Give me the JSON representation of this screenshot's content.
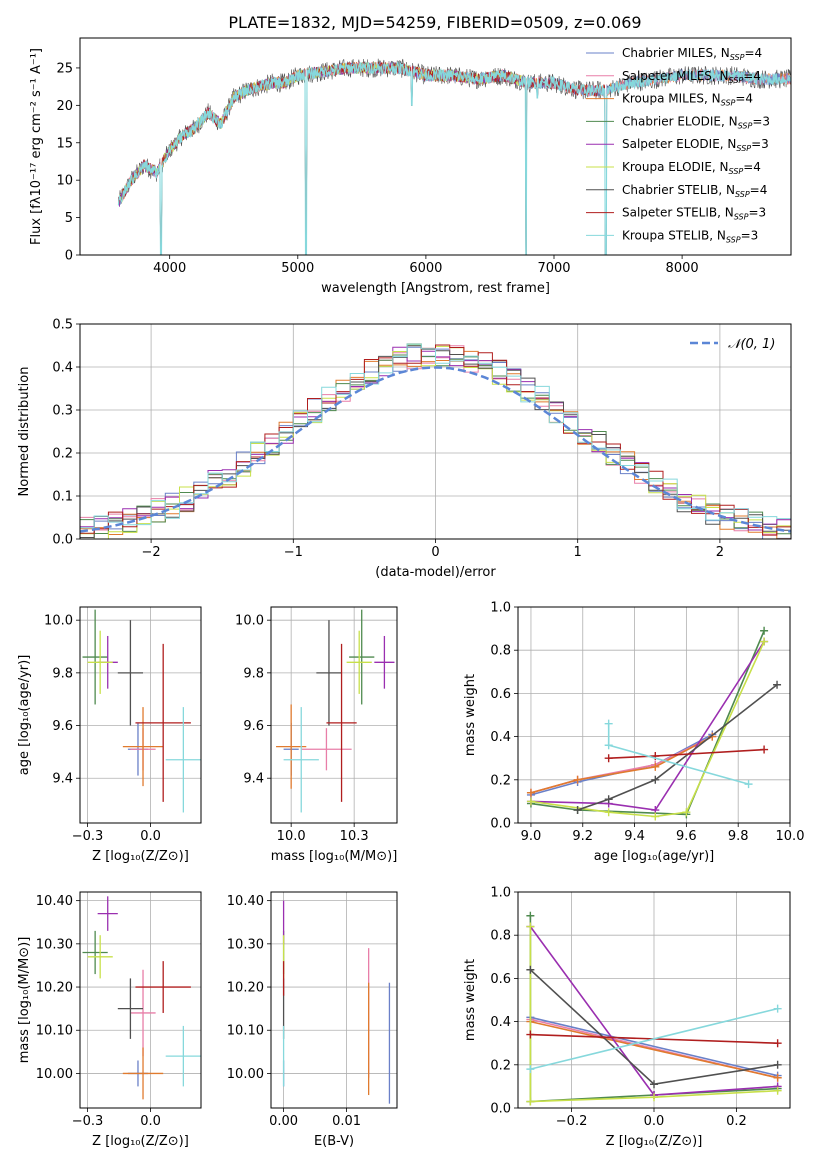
{
  "figure": {
    "title": "PLATE=1832, MJD=54259, FIBERID=0509, z=0.069"
  },
  "palette": {
    "chabrier_miles": "#6a80c8",
    "salpeter_miles": "#e87ea8",
    "kroupa_miles": "#e07b2f",
    "chabrier_elodie": "#4f8a4f",
    "salpeter_elodie": "#9a2fb0",
    "kroupa_elodie": "#c8e04a",
    "chabrier_stelib": "#505050",
    "salpeter_stelib": "#b01e1e",
    "kroupa_stelib": "#86d8dc",
    "normal_curve": "#5b86d6",
    "grid": "#b0b0b0"
  },
  "chart_data": [
    {
      "id": "spectrum",
      "type": "line",
      "xlabel": "wavelength [Angstrom, rest frame]",
      "ylabel": "Flux [fλ10⁻¹⁷ erg cm⁻² s⁻¹ A⁻¹]",
      "xlim": [
        3300,
        8850
      ],
      "ylim": [
        0,
        29
      ],
      "grid": false,
      "xticks": [
        4000,
        5000,
        6000,
        7000,
        8000
      ],
      "yticks": [
        0,
        5,
        10,
        15,
        20,
        25
      ],
      "legend_position": "top-right",
      "legend": [
        {
          "label": "Chabrier MILES, N",
          "sub": "SSP",
          "tail": "=4",
          "color_key": "chabrier_miles"
        },
        {
          "label": "Salpeter MILES, N",
          "sub": "SSP",
          "tail": "=4",
          "color_key": "salpeter_miles"
        },
        {
          "label": "Kroupa MILES, N",
          "sub": "SSP",
          "tail": "=4",
          "color_key": "kroupa_miles"
        },
        {
          "label": "Chabrier ELODIE, N",
          "sub": "SSP",
          "tail": "=3",
          "color_key": "chabrier_elodie"
        },
        {
          "label": "Salpeter ELODIE, N",
          "sub": "SSP",
          "tail": "=3",
          "color_key": "salpeter_elodie"
        },
        {
          "label": "Kroupa ELODIE, N",
          "sub": "SSP",
          "tail": "=4",
          "color_key": "kroupa_elodie"
        },
        {
          "label": "Chabrier STELIB, N",
          "sub": "SSP",
          "tail": "=4",
          "color_key": "chabrier_stelib"
        },
        {
          "label": "Salpeter STELIB, N",
          "sub": "SSP",
          "tail": "=3",
          "color_key": "salpeter_stelib"
        },
        {
          "label": "Kroupa STELIB, N",
          "sub": "SSP",
          "tail": "=3",
          "color_key": "kroupa_stelib"
        }
      ],
      "continuum": {
        "x": [
          3600,
          3700,
          3800,
          3900,
          4000,
          4100,
          4200,
          4300,
          4400,
          4500,
          4600,
          4700,
          4800,
          4900,
          5000,
          5200,
          5400,
          5600,
          5800,
          6000,
          6200,
          6400,
          6600,
          6800,
          7000,
          7200,
          7400,
          7600,
          7800,
          8000,
          8200,
          8400,
          8600,
          8800
        ],
        "y": [
          7,
          10,
          12,
          11,
          14,
          16,
          17,
          19,
          17.5,
          21,
          22,
          22.5,
          23,
          23,
          24,
          24.5,
          25,
          25,
          25,
          24,
          24,
          23.5,
          24,
          23,
          23,
          22,
          22,
          23,
          23.5,
          24,
          24,
          24,
          23.5,
          23.5
        ]
      },
      "absorption_dips": [
        {
          "x": 3933,
          "y": 0
        },
        {
          "x": 5063,
          "y": 0
        },
        {
          "x": 5890,
          "y": 20
        },
        {
          "x": 6782,
          "y": 0
        },
        {
          "x": 6870,
          "y": 21
        },
        {
          "x": 7405,
          "y": 0
        }
      ]
    },
    {
      "id": "residuals",
      "type": "line",
      "xlabel": "(data-model)/error",
      "ylabel": "Normed distribution",
      "xlim": [
        -2.5,
        2.5
      ],
      "ylim": [
        0,
        0.5
      ],
      "grid": true,
      "xticks": [
        -2,
        -1,
        0,
        1,
        2
      ],
      "yticks": [
        0.0,
        0.1,
        0.2,
        0.3,
        0.4,
        0.5
      ],
      "legend_position": "top-right",
      "curve": {
        "name": "𝒩(0, 1)",
        "mean": 0,
        "sigma": 1,
        "style": "dashed"
      },
      "bin_width": 0.1,
      "note": ""
    },
    {
      "id": "age_vs_Z",
      "type": "scatter",
      "xlabel": "Z [log₁₀(Z/Z⊙)]",
      "ylabel": "age  [log₁₀(age/yr)]",
      "xlim": [
        -0.28,
        0.2
      ],
      "ylim": [
        9.23,
        10.05
      ],
      "grid": true,
      "xticks": [
        -0.25,
        0.0
      ],
      "yticks": [
        9.4,
        9.6,
        9.8,
        10.0
      ],
      "points": [
        {
          "color_key": "chabrier_miles",
          "x": -0.05,
          "y": 9.51,
          "xerr": 0.04,
          "yerr": 0.1
        },
        {
          "color_key": "salpeter_miles",
          "x": -0.03,
          "y": 9.51,
          "xerr": 0.05,
          "yerr": 0.08
        },
        {
          "color_key": "kroupa_miles",
          "x": -0.03,
          "y": 9.52,
          "xerr": 0.08,
          "yerr": 0.15
        },
        {
          "color_key": "chabrier_elodie",
          "x": -0.22,
          "y": 9.86,
          "xerr": 0.05,
          "yerr": 0.18
        },
        {
          "color_key": "salpeter_elodie",
          "x": -0.17,
          "y": 9.84,
          "xerr": 0.04,
          "yerr": 0.1
        },
        {
          "color_key": "kroupa_elodie",
          "x": -0.2,
          "y": 9.84,
          "xerr": 0.05,
          "yerr": 0.12
        },
        {
          "color_key": "chabrier_stelib",
          "x": -0.08,
          "y": 9.8,
          "xerr": 0.05,
          "yerr": 0.2
        },
        {
          "color_key": "salpeter_stelib",
          "x": 0.05,
          "y": 9.61,
          "xerr": 0.11,
          "yerr": 0.3
        },
        {
          "color_key": "kroupa_stelib",
          "x": 0.13,
          "y": 9.47,
          "xerr": 0.07,
          "yerr": 0.2
        }
      ]
    },
    {
      "id": "age_vs_mass",
      "type": "scatter",
      "xlabel": "mass [log₁₀(M/M⊙)]",
      "ylabel": "",
      "xlim": [
        9.92,
        10.42
      ],
      "ylim": [
        9.23,
        10.05
      ],
      "grid": true,
      "xticks": [
        10.0,
        10.25
      ],
      "yticks": [
        9.4,
        9.6,
        9.8,
        10.0
      ],
      "points": [
        {
          "color_key": "chabrier_miles",
          "x": 10.0,
          "y": 9.51,
          "xerr": 0.03,
          "yerr": 0.1
        },
        {
          "color_key": "salpeter_miles",
          "x": 10.14,
          "y": 9.51,
          "xerr": 0.1,
          "yerr": 0.08
        },
        {
          "color_key": "kroupa_miles",
          "x": 10.0,
          "y": 9.52,
          "xerr": 0.06,
          "yerr": 0.16
        },
        {
          "color_key": "chabrier_elodie",
          "x": 10.28,
          "y": 9.86,
          "xerr": 0.05,
          "yerr": 0.18
        },
        {
          "color_key": "salpeter_elodie",
          "x": 10.37,
          "y": 9.84,
          "xerr": 0.04,
          "yerr": 0.1
        },
        {
          "color_key": "kroupa_elodie",
          "x": 10.27,
          "y": 9.84,
          "xerr": 0.05,
          "yerr": 0.12
        },
        {
          "color_key": "chabrier_stelib",
          "x": 10.15,
          "y": 9.8,
          "xerr": 0.05,
          "yerr": 0.2
        },
        {
          "color_key": "salpeter_stelib",
          "x": 10.2,
          "y": 9.61,
          "xerr": 0.06,
          "yerr": 0.3
        },
        {
          "color_key": "kroupa_stelib",
          "x": 10.04,
          "y": 9.47,
          "xerr": 0.07,
          "yerr": 0.2
        }
      ]
    },
    {
      "id": "weight_vs_age",
      "type": "line",
      "xlabel": "age  [log₁₀(age/yr)]",
      "ylabel": "mass weight",
      "xlim": [
        8.95,
        10.0
      ],
      "ylim": [
        0,
        1.0
      ],
      "grid": true,
      "xticks": [
        9.0,
        9.2,
        9.4,
        9.6,
        9.8,
        10.0
      ],
      "yticks": [
        0.0,
        0.2,
        0.4,
        0.6,
        0.8,
        1.0
      ],
      "series": [
        {
          "color_key": "chabrier_miles",
          "x": [
            9.0,
            9.18,
            9.48,
            9.7
          ],
          "y": [
            0.13,
            0.19,
            0.27,
            0.41
          ]
        },
        {
          "color_key": "salpeter_miles",
          "x": [
            9.0,
            9.18,
            9.48,
            9.7
          ],
          "y": [
            0.14,
            0.2,
            0.27,
            0.4
          ]
        },
        {
          "color_key": "kroupa_miles",
          "x": [
            9.0,
            9.18,
            9.48,
            9.7
          ],
          "y": [
            0.14,
            0.2,
            0.26,
            0.4
          ]
        },
        {
          "color_key": "chabrier_elodie",
          "x": [
            9.0,
            9.18,
            9.6,
            9.9
          ],
          "y": [
            0.09,
            0.06,
            0.04,
            0.89
          ]
        },
        {
          "color_key": "salpeter_elodie",
          "x": [
            9.0,
            9.3,
            9.48,
            9.9
          ],
          "y": [
            0.1,
            0.09,
            0.06,
            0.84
          ]
        },
        {
          "color_key": "kroupa_elodie",
          "x": [
            9.0,
            9.3,
            9.48,
            9.6,
            9.9
          ],
          "y": [
            0.1,
            0.05,
            0.03,
            0.05,
            0.84
          ]
        },
        {
          "color_key": "chabrier_stelib",
          "x": [
            9.18,
            9.3,
            9.48,
            9.95
          ],
          "y": [
            0.06,
            0.11,
            0.2,
            0.64
          ]
        },
        {
          "color_key": "salpeter_stelib",
          "x": [
            9.3,
            9.48,
            9.9
          ],
          "y": [
            0.3,
            0.31,
            0.34
          ]
        },
        {
          "color_key": "kroupa_stelib",
          "x": [
            9.3,
            9.3,
            9.84
          ],
          "y": [
            0.46,
            0.36,
            0.18
          ]
        }
      ]
    },
    {
      "id": "mass_vs_Z",
      "type": "scatter",
      "xlabel": "Z [log₁₀(Z/Z⊙)]",
      "ylabel": "mass [log₁₀(M/M⊙)]",
      "xlim": [
        -0.28,
        0.2
      ],
      "ylim": [
        9.92,
        10.42
      ],
      "grid": true,
      "xticks": [
        -0.25,
        0.0
      ],
      "yticks": [
        10.0,
        10.1,
        10.2,
        10.3,
        10.4
      ],
      "points": [
        {
          "color_key": "chabrier_miles",
          "x": -0.05,
          "y": 10.0,
          "xerr": 0.04,
          "yerr": 0.03
        },
        {
          "color_key": "salpeter_miles",
          "x": -0.03,
          "y": 10.14,
          "xerr": 0.05,
          "yerr": 0.1
        },
        {
          "color_key": "kroupa_miles",
          "x": -0.03,
          "y": 10.0,
          "xerr": 0.08,
          "yerr": 0.06
        },
        {
          "color_key": "chabrier_elodie",
          "x": -0.22,
          "y": 10.28,
          "xerr": 0.05,
          "yerr": 0.05
        },
        {
          "color_key": "salpeter_elodie",
          "x": -0.17,
          "y": 10.37,
          "xerr": 0.04,
          "yerr": 0.04
        },
        {
          "color_key": "kroupa_elodie",
          "x": -0.2,
          "y": 10.27,
          "xerr": 0.05,
          "yerr": 0.05
        },
        {
          "color_key": "chabrier_stelib",
          "x": -0.08,
          "y": 10.15,
          "xerr": 0.05,
          "yerr": 0.07
        },
        {
          "color_key": "salpeter_stelib",
          "x": 0.05,
          "y": 10.2,
          "xerr": 0.11,
          "yerr": 0.06
        },
        {
          "color_key": "kroupa_stelib",
          "x": 0.13,
          "y": 10.04,
          "xerr": 0.07,
          "yerr": 0.07
        }
      ]
    },
    {
      "id": "mass_vs_ebv",
      "type": "scatter",
      "xlabel": "E(B-V)",
      "ylabel": "",
      "xlim": [
        -0.002,
        0.018
      ],
      "ylim": [
        9.92,
        10.42
      ],
      "grid": true,
      "xticks": [
        0.0,
        0.01
      ],
      "yticks": [
        10.0,
        10.1,
        10.2,
        10.3,
        10.4
      ],
      "points": [
        {
          "color_key": "chabrier_miles",
          "x": 0.0,
          "y": 10.0,
          "xerr": 0,
          "yerr": 0.03
        },
        {
          "color_key": "salpeter_miles",
          "x": 0.0135,
          "y": 10.14,
          "xerr": 0,
          "yerr": 0.15
        },
        {
          "color_key": "kroupa_miles",
          "x": 0.0135,
          "y": 10.08,
          "xerr": 0,
          "yerr": 0.13
        },
        {
          "color_key": "chabrier_elodie",
          "x": 0.0,
          "y": 10.28,
          "xerr": 0,
          "yerr": 0.05
        },
        {
          "color_key": "salpeter_elodie",
          "x": 0.0,
          "y": 10.35,
          "xerr": 0,
          "yerr": 0.05
        },
        {
          "color_key": "kroupa_elodie",
          "x": 0.0,
          "y": 10.27,
          "xerr": 0,
          "yerr": 0.05
        },
        {
          "color_key": "chabrier_stelib",
          "x": 0.0,
          "y": 10.15,
          "xerr": 0,
          "yerr": 0.07
        },
        {
          "color_key": "salpeter_stelib",
          "x": 0.0,
          "y": 10.22,
          "xerr": 0,
          "yerr": 0.04
        },
        {
          "color_key": "kroupa_stelib",
          "x": 0.0,
          "y": 10.04,
          "xerr": 0,
          "yerr": 0.07
        },
        {
          "color_key": "chabrier_miles",
          "x": 0.0168,
          "y": 10.07,
          "xerr": 0,
          "yerr": 0.14
        }
      ]
    },
    {
      "id": "weight_vs_Z",
      "type": "line",
      "xlabel": "Z [log₁₀(Z/Z⊙)]",
      "ylabel": "mass weight",
      "xlim": [
        -0.33,
        0.33
      ],
      "ylim": [
        0,
        1.0
      ],
      "grid": true,
      "xticks": [
        -0.2,
        0.0,
        0.2
      ],
      "yticks": [
        0.0,
        0.2,
        0.4,
        0.6,
        0.8,
        1.0
      ],
      "series": [
        {
          "color_key": "chabrier_miles",
          "x": [
            -0.3,
            0.3
          ],
          "y": [
            0.42,
            0.15
          ]
        },
        {
          "color_key": "salpeter_miles",
          "x": [
            -0.3,
            0.3
          ],
          "y": [
            0.41,
            0.14
          ]
        },
        {
          "color_key": "kroupa_miles",
          "x": [
            -0.3,
            0.3
          ],
          "y": [
            0.4,
            0.14
          ]
        },
        {
          "color_key": "chabrier_elodie",
          "x": [
            -0.3,
            -0.3,
            0.0,
            0.3
          ],
          "y": [
            0.89,
            0.03,
            0.06,
            0.09
          ]
        },
        {
          "color_key": "salpeter_elodie",
          "x": [
            -0.3,
            0.0,
            0.3
          ],
          "y": [
            0.84,
            0.06,
            0.1
          ]
        },
        {
          "color_key": "kroupa_elodie",
          "x": [
            -0.3,
            -0.3,
            0.0,
            0.3
          ],
          "y": [
            0.84,
            0.03,
            0.05,
            0.08
          ]
        },
        {
          "color_key": "chabrier_stelib",
          "x": [
            -0.3,
            0.0,
            0.3
          ],
          "y": [
            0.64,
            0.11,
            0.2
          ]
        },
        {
          "color_key": "salpeter_stelib",
          "x": [
            -0.3,
            0.3
          ],
          "y": [
            0.34,
            0.3
          ]
        },
        {
          "color_key": "kroupa_stelib",
          "x": [
            -0.3,
            0.3
          ],
          "y": [
            0.18,
            0.46
          ]
        }
      ]
    }
  ]
}
